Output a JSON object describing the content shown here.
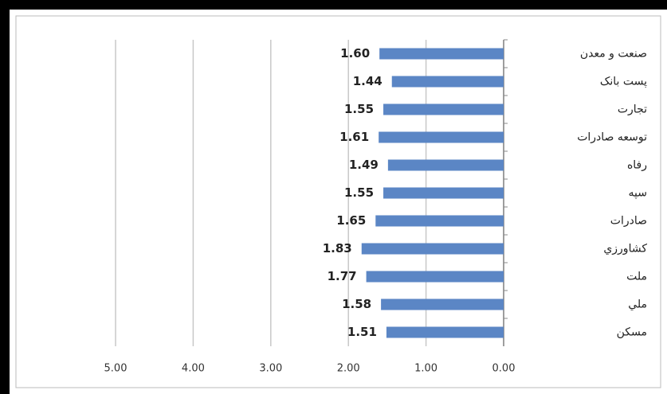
{
  "chart_data": {
    "type": "bar",
    "orientation": "horizontal",
    "x_reversed": true,
    "categories": [
      "صنعت و معدن",
      "پست بانک",
      "تجارت",
      "توسعه صادرات",
      "رفاه",
      "سپه",
      "صادرات",
      "کشاورزي",
      "ملت",
      "ملي",
      "مسکن"
    ],
    "values": [
      1.6,
      1.44,
      1.55,
      1.61,
      1.49,
      1.55,
      1.65,
      1.83,
      1.77,
      1.58,
      1.51
    ],
    "value_labels": [
      "1.60",
      "1.44",
      "1.55",
      "1.61",
      "1.49",
      "1.55",
      "1.65",
      "1.83",
      "1.77",
      "1.58",
      "1.51"
    ],
    "color": "#5b86c5",
    "xlim": [
      0,
      5
    ],
    "xticks": [
      {
        "value": 0,
        "label": "0.00"
      },
      {
        "value": 1,
        "label": "1.00"
      },
      {
        "value": 2,
        "label": "2.00"
      },
      {
        "value": 3,
        "label": "3.00"
      },
      {
        "value": 4,
        "label": "4.00"
      },
      {
        "value": 5,
        "label": "5.00"
      }
    ],
    "grid": true
  }
}
